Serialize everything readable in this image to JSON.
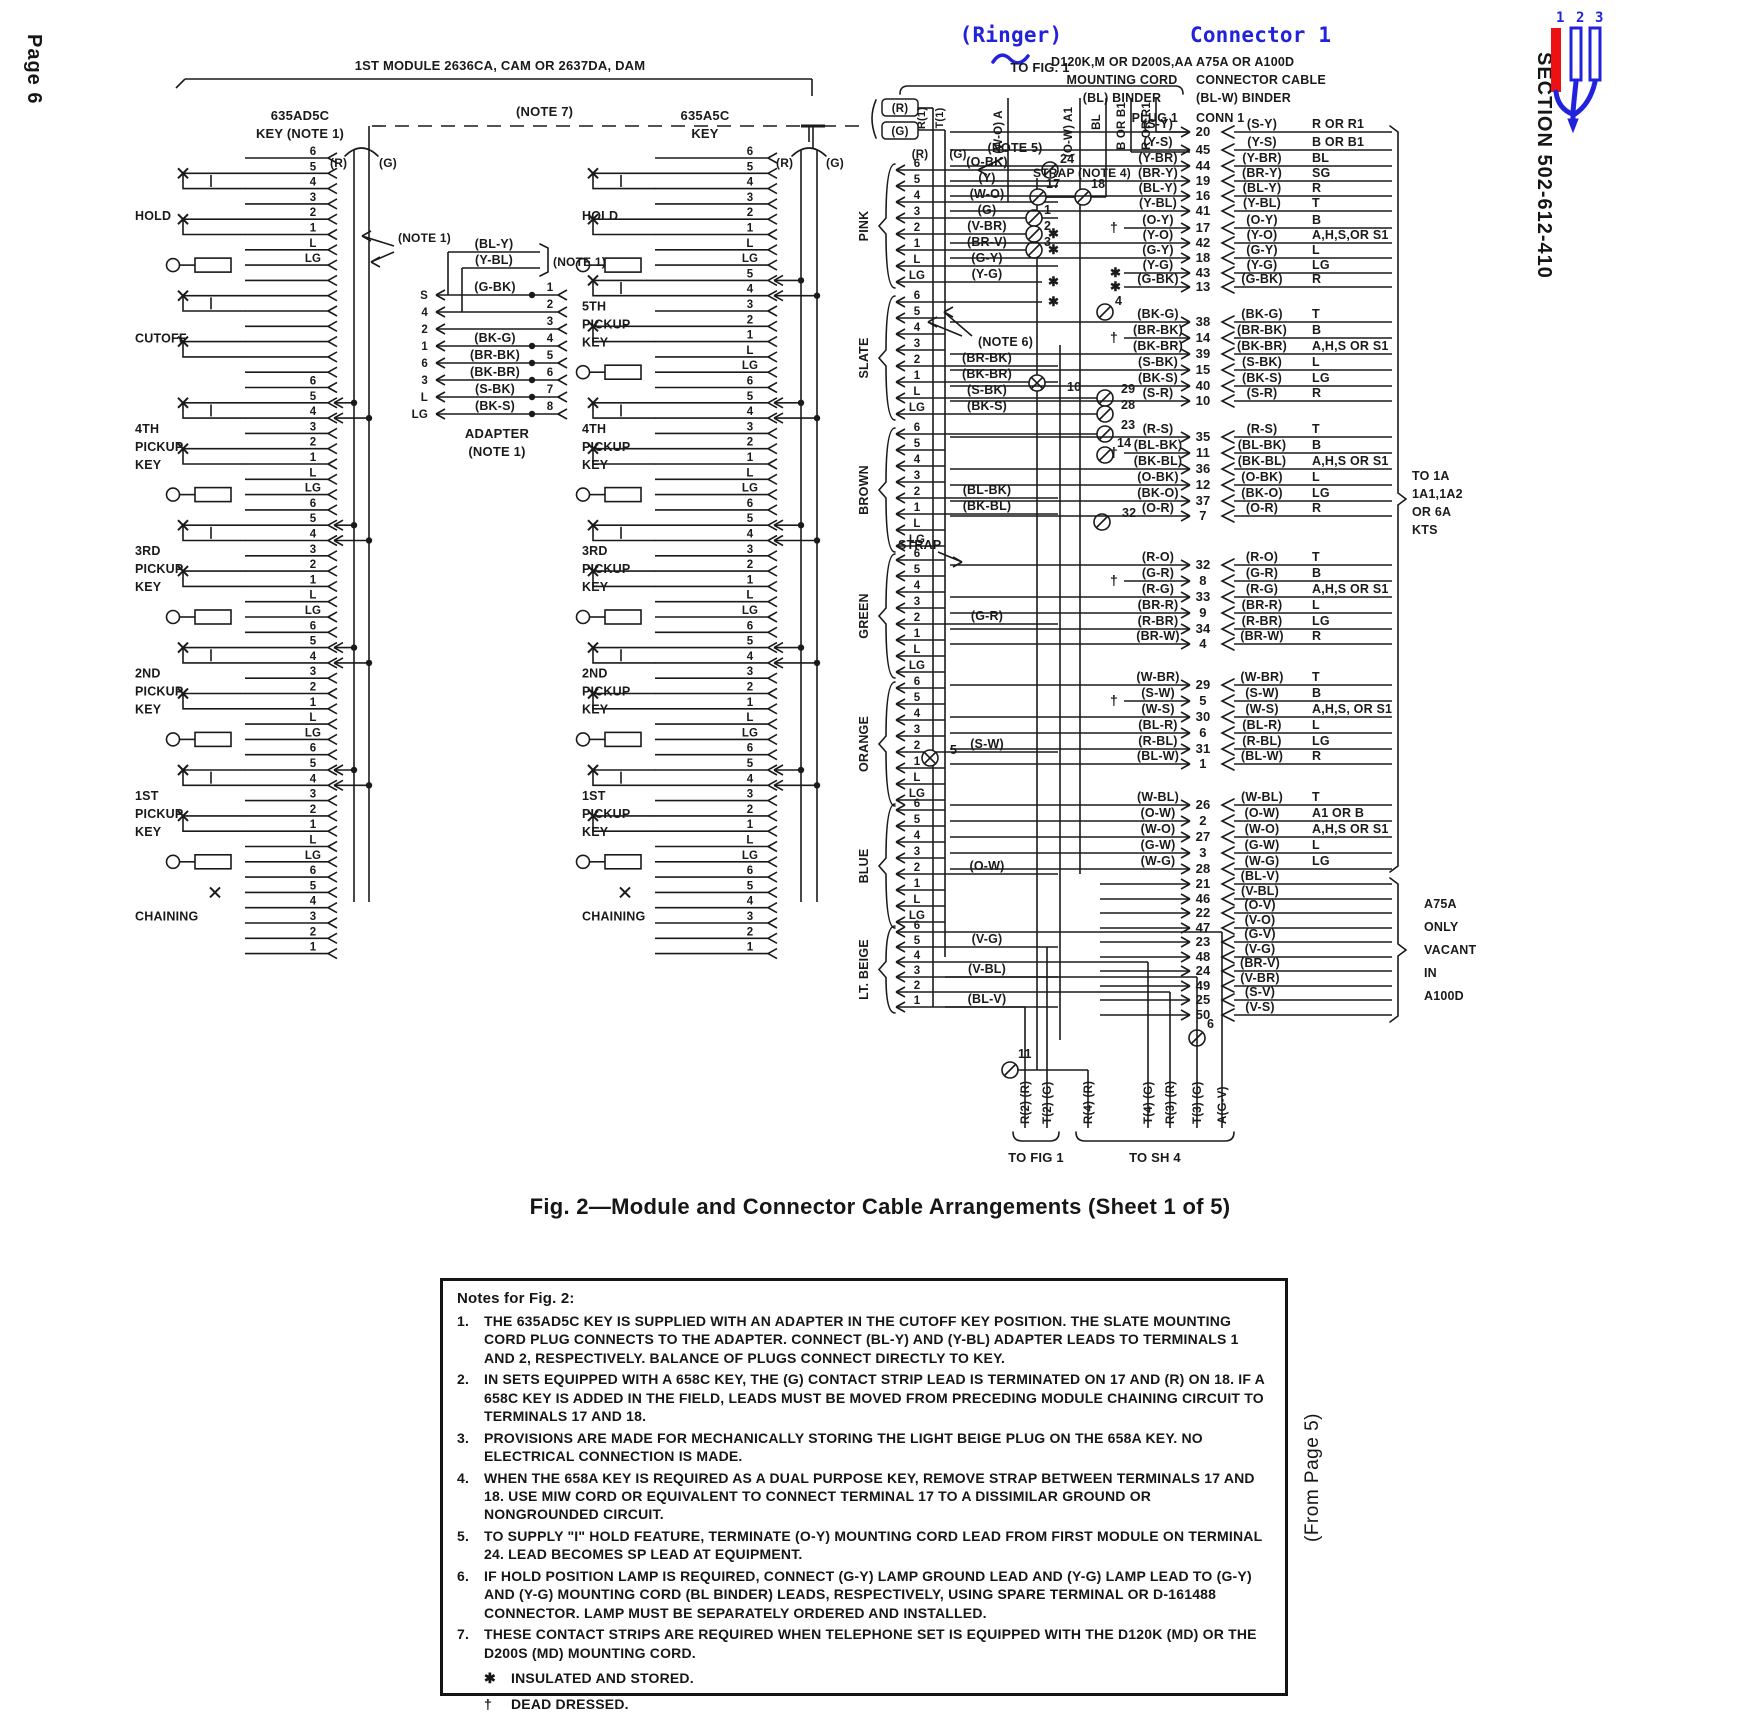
{
  "ink": "#1a1a1a",
  "page": {
    "left_margin_text": "Page 6",
    "right_margin_text": "SECTION 502-612-410",
    "from_page_text": "(From Page 5)",
    "figure_title": "Fig. 2—Module and Connector Cable Arrangements (Sheet 1 of 5)"
  },
  "annotations": {
    "blue": "#2222dd",
    "red": "#ee1111",
    "ringer": "(Ringer)",
    "connector": "Connector 1",
    "pins": [
      "1",
      "2",
      "3"
    ]
  },
  "top": {
    "module": "1ST MODULE 2636CA, CAM OR 2637DA, DAM",
    "note7": "(NOTE 7)",
    "to_fig1": "TO FIG. 1",
    "note5": "(NOTE 5)",
    "note6": "(NOTE 6)",
    "strap": "STRAP",
    "strap_note4": "STRAP (NOTE 4)",
    "rg_boxed": [
      "(R)",
      "(G)"
    ],
    "rg_plain": [
      "(R)",
      "(G)"
    ],
    "verticals_left": [
      "R(1)",
      "T(1)"
    ],
    "verticals_mid": [
      "(W-O) A",
      "(O-W) A1"
    ],
    "verticals_right": [
      "BL",
      "B OR B1",
      "R OR R1"
    ],
    "mounting_cord": [
      "D120K,M OR D200S,AA",
      "MOUNTING CORD",
      "(BL) BINDER"
    ],
    "plug1": "PLUG 1",
    "connector_cable": [
      "A75A OR A100D",
      "CONNECTOR CABLE",
      "(BL-W) BINDER"
    ],
    "conn1": "CONN 1"
  },
  "keys": [
    {
      "title": [
        "635AD5C",
        "KEY (NOTE 1)"
      ],
      "r": "(R)",
      "g": "(G)",
      "sections": [
        {
          "label": [
            "HOLD"
          ],
          "rows": [
            "6",
            "5",
            "4",
            "3",
            "2",
            "1",
            "L",
            "LG"
          ]
        },
        {
          "label": [
            "CUTOFF"
          ],
          "rows": [
            "",
            "",
            "",
            "",
            "",
            "",
            "",
            "6"
          ]
        },
        {
          "label": [
            "4TH",
            "PICKUP",
            "KEY"
          ],
          "rows": [
            "5",
            "4",
            "3",
            "2",
            "1",
            "L",
            "LG",
            "6"
          ]
        },
        {
          "label": [
            "3RD",
            "PICKUP",
            "KEY"
          ],
          "rows": [
            "5",
            "4",
            "3",
            "2",
            "1",
            "L",
            "LG",
            "6"
          ]
        },
        {
          "label": [
            "2ND",
            "PICKUP",
            "KEY"
          ],
          "rows": [
            "5",
            "4",
            "3",
            "2",
            "1",
            "L",
            "LG",
            "6"
          ]
        },
        {
          "label": [
            "1ST",
            "PICKUP",
            "KEY"
          ],
          "rows": [
            "5",
            "4",
            "3",
            "2",
            "1",
            "L",
            "LG",
            "6"
          ]
        },
        {
          "label": [
            "CHAINING"
          ],
          "rows": [
            "5",
            "4",
            "3",
            "2",
            "1"
          ]
        }
      ]
    },
    {
      "title": [
        "635A5C",
        "KEY"
      ],
      "r": "(R)",
      "g": "(G)",
      "sections": [
        {
          "label": [
            "HOLD"
          ],
          "rows": [
            "6",
            "5",
            "4",
            "3",
            "2",
            "1",
            "L",
            "LG"
          ]
        },
        {
          "label": [
            "5TH",
            "PICKUP",
            "KEY"
          ],
          "rows": [
            "5",
            "4",
            "3",
            "2",
            "1",
            "L",
            "LG",
            "6"
          ]
        },
        {
          "label": [
            "4TH",
            "PICKUP",
            "KEY"
          ],
          "rows": [
            "5",
            "4",
            "3",
            "2",
            "1",
            "L",
            "LG",
            "6"
          ]
        },
        {
          "label": [
            "3RD",
            "PICKUP",
            "KEY"
          ],
          "rows": [
            "5",
            "4",
            "3",
            "2",
            "1",
            "L",
            "LG",
            "6"
          ]
        },
        {
          "label": [
            "2ND",
            "PICKUP",
            "KEY"
          ],
          "rows": [
            "5",
            "4",
            "3",
            "2",
            "1",
            "L",
            "LG",
            "6"
          ]
        },
        {
          "label": [
            "1ST",
            "PICKUP",
            "KEY"
          ],
          "rows": [
            "5",
            "4",
            "3",
            "2",
            "1",
            "L",
            "LG",
            "6"
          ]
        },
        {
          "label": [
            "CHAINING"
          ],
          "rows": [
            "5",
            "4",
            "3",
            "2",
            "1"
          ]
        }
      ]
    }
  ],
  "adapter": {
    "top_wires": [
      "(BL-Y)",
      "(Y-BL)"
    ],
    "bracket_note": "(NOTE 1)",
    "key_note": "(NOTE 1)",
    "rows": [
      {
        "l": "S",
        "w": "(G-BK)",
        "r": "1"
      },
      {
        "l": "4",
        "w": "",
        "r": "2"
      },
      {
        "l": "2",
        "w": "",
        "r": "3"
      },
      {
        "l": "1",
        "w": "(BK-G)",
        "r": "4"
      },
      {
        "l": "6",
        "w": "(BR-BK)",
        "r": "5"
      },
      {
        "l": "3",
        "w": "(BK-BR)",
        "r": "6"
      },
      {
        "l": "L",
        "w": "(S-BK)",
        "r": "7"
      },
      {
        "l": "LG",
        "w": "(BK-S)",
        "r": "8"
      }
    ],
    "label": [
      "ADAPTER",
      "(NOTE 1)"
    ]
  },
  "plug_groups": [
    {
      "color": "PINK",
      "rows": [
        {
          "n": "6",
          "w": "(O-BK)"
        },
        {
          "n": "5",
          "w": "(Y)"
        },
        {
          "n": "4",
          "w": "(W-O)"
        },
        {
          "n": "3",
          "w": "(G)"
        },
        {
          "n": "2",
          "w": "(V-BR)",
          "s": true
        },
        {
          "n": "1",
          "w": "(BR-V)",
          "s": true
        },
        {
          "n": "L",
          "w": "(G-Y)"
        },
        {
          "n": "LG",
          "w": "(Y-G)",
          "s": true
        }
      ]
    },
    {
      "color": "SLATE",
      "rows": [
        {
          "n": "6",
          "s": true
        },
        {
          "n": "5"
        },
        {
          "n": "4"
        },
        {
          "n": "3"
        },
        {
          "n": "2",
          "w": "(BR-BK)"
        },
        {
          "n": "1",
          "w": "(BK-BR)"
        },
        {
          "n": "L",
          "w": "(S-BK)"
        },
        {
          "n": "LG",
          "w": "(BK-S)"
        }
      ]
    },
    {
      "color": "BROWN",
      "rows": [
        {
          "n": "6"
        },
        {
          "n": "5"
        },
        {
          "n": "4"
        },
        {
          "n": "3"
        },
        {
          "n": "2",
          "w": "(BL-BK)"
        },
        {
          "n": "1",
          "w": "(BK-BL)"
        },
        {
          "n": "L"
        },
        {
          "n": "LG"
        }
      ]
    },
    {
      "color": "GREEN",
      "rows": [
        {
          "n": "6"
        },
        {
          "n": "5"
        },
        {
          "n": "4"
        },
        {
          "n": "3"
        },
        {
          "n": "2",
          "w": "(G-R)"
        },
        {
          "n": "1"
        },
        {
          "n": "L"
        },
        {
          "n": "LG"
        }
      ]
    },
    {
      "color": "ORANGE",
      "rows": [
        {
          "n": "6"
        },
        {
          "n": "5"
        },
        {
          "n": "4"
        },
        {
          "n": "3"
        },
        {
          "n": "2",
          "w": "(S-W)"
        },
        {
          "n": "1"
        },
        {
          "n": "L"
        },
        {
          "n": "LG"
        }
      ]
    },
    {
      "color": "BLUE",
      "rows": [
        {
          "n": "6"
        },
        {
          "n": "5"
        },
        {
          "n": "4"
        },
        {
          "n": "3"
        },
        {
          "n": "2",
          "w": "(O-W)"
        },
        {
          "n": "1"
        },
        {
          "n": "L"
        },
        {
          "n": "LG"
        }
      ]
    },
    {
      "color": "LT. BEIGE",
      "rows": [
        {
          "n": "6"
        },
        {
          "n": "5",
          "w": "(V-G)"
        },
        {
          "n": "4"
        },
        {
          "n": "3",
          "w": "(V-BL)"
        },
        {
          "n": "2"
        },
        {
          "n": "1",
          "w": "(BL-V)"
        }
      ]
    }
  ],
  "mid_terminals": [
    "24",
    "17",
    "18",
    "1",
    "2",
    "3",
    "4",
    "10",
    "29",
    "28",
    "23",
    "14",
    "32",
    "5",
    "11",
    "6"
  ],
  "right_groups": [
    {
      "rows": [
        {
          "pw": "(S-Y)",
          "t": "20",
          "cw": "(S-Y)",
          "d": "R OR R1"
        },
        {
          "pw": "(Y-S)",
          "t": "45",
          "cw": "(Y-S)",
          "d": "B OR B1"
        },
        {
          "pw": "(Y-BR)",
          "t": "44",
          "cw": "(Y-BR)",
          "d": "BL"
        },
        {
          "pw": "(BR-Y)",
          "t": "19",
          "cw": "(BR-Y)",
          "d": "SG"
        },
        {
          "pw": "(BL-Y)",
          "t": "16",
          "cw": "(BL-Y)",
          "d": "R"
        },
        {
          "pw": "(Y-BL)",
          "t": "41",
          "cw": "(Y-BL)",
          "d": "T"
        },
        {
          "pw": "(O-Y)",
          "t": "17",
          "cw": "(O-Y)",
          "d": "B",
          "dag": true
        },
        {
          "pw": "(Y-O)",
          "t": "42",
          "cw": "(Y-O)",
          "d": "A,H,S,OR S1"
        },
        {
          "pw": "(G-Y)",
          "t": "18",
          "cw": "(G-Y)",
          "d": "L"
        },
        {
          "pw": "(Y-G)",
          "t": "43",
          "cw": "(Y-G)",
          "d": "LG",
          "star": true
        },
        {
          "pw": "(G-BK)",
          "t": "13",
          "cw": "(G-BK)",
          "d": "R",
          "star": true
        }
      ]
    },
    {
      "rows": [
        {
          "pw": "(BK-G)",
          "t": "38",
          "cw": "(BK-G)",
          "d": "T"
        },
        {
          "pw": "(BR-BK)",
          "t": "14",
          "cw": "(BR-BK)",
          "d": "B",
          "dag": true
        },
        {
          "pw": "(BK-BR)",
          "t": "39",
          "cw": "(BK-BR)",
          "d": "A,H,S OR S1"
        },
        {
          "pw": "(S-BK)",
          "t": "15",
          "cw": "(S-BK)",
          "d": "L"
        },
        {
          "pw": "(BK-S)",
          "t": "40",
          "cw": "(BK-S)",
          "d": "LG"
        },
        {
          "pw": "(S-R)",
          "t": "10",
          "cw": "(S-R)",
          "d": "R"
        }
      ]
    },
    {
      "rows": [
        {
          "pw": "(R-S)",
          "t": "35",
          "cw": "(R-S)",
          "d": "T"
        },
        {
          "pw": "(BL-BK)",
          "t": "11",
          "cw": "(BL-BK)",
          "d": "B",
          "dag": true
        },
        {
          "pw": "(BK-BL)",
          "t": "36",
          "cw": "(BK-BL)",
          "d": "A,H,S OR S1"
        },
        {
          "pw": "(O-BK)",
          "t": "12",
          "cw": "(O-BK)",
          "d": "L"
        },
        {
          "pw": "(BK-O)",
          "t": "37",
          "cw": "(BK-O)",
          "d": "LG"
        },
        {
          "pw": "(O-R)",
          "t": "7",
          "cw": "(O-R)",
          "d": "R"
        }
      ]
    },
    {
      "rows": [
        {
          "pw": "(R-O)",
          "t": "32",
          "cw": "(R-O)",
          "d": "T"
        },
        {
          "pw": "(G-R)",
          "t": "8",
          "cw": "(G-R)",
          "d": "B",
          "dag": true
        },
        {
          "pw": "(R-G)",
          "t": "33",
          "cw": "(R-G)",
          "d": "A,H,S OR S1"
        },
        {
          "pw": "(BR-R)",
          "t": "9",
          "cw": "(BR-R)",
          "d": "L"
        },
        {
          "pw": "(R-BR)",
          "t": "34",
          "cw": "(R-BR)",
          "d": "LG"
        },
        {
          "pw": "(BR-W)",
          "t": "4",
          "cw": "(BR-W)",
          "d": "R"
        }
      ]
    },
    {
      "rows": [
        {
          "pw": "(W-BR)",
          "t": "29",
          "cw": "(W-BR)",
          "d": "T"
        },
        {
          "pw": "(S-W)",
          "t": "5",
          "cw": "(S-W)",
          "d": "B",
          "dag": true
        },
        {
          "pw": "(W-S)",
          "t": "30",
          "cw": "(W-S)",
          "d": "A,H,S, OR S1"
        },
        {
          "pw": "(BL-R)",
          "t": "6",
          "cw": "(BL-R)",
          "d": "L"
        },
        {
          "pw": "(R-BL)",
          "t": "31",
          "cw": "(R-BL)",
          "d": "LG"
        },
        {
          "pw": "(BL-W)",
          "t": "1",
          "cw": "(BL-W)",
          "d": "R"
        }
      ]
    },
    {
      "rows": [
        {
          "pw": "(W-BL)",
          "t": "26",
          "cw": "(W-BL)",
          "d": "T"
        },
        {
          "pw": "(O-W)",
          "t": "2",
          "cw": "(O-W)",
          "d": "A1 OR B"
        },
        {
          "pw": "(W-O)",
          "t": "27",
          "cw": "(W-O)",
          "d": "A,H,S OR S1"
        },
        {
          "pw": "(G-W)",
          "t": "3",
          "cw": "(G-W)",
          "d": "L"
        },
        {
          "pw": "(W-G)",
          "t": "28",
          "cw": "(W-G)",
          "d": "LG"
        }
      ]
    }
  ],
  "vacant_rows": [
    {
      "t": "21",
      "w": "(BL-V)"
    },
    {
      "t": "46",
      "w": "(V-BL)"
    },
    {
      "t": "22",
      "w": "(O-V)"
    },
    {
      "t": "47",
      "w": "(V-O)"
    },
    {
      "t": "23",
      "w": "(G-V)"
    },
    {
      "t": "48",
      "w": "(V-G)"
    },
    {
      "t": "24",
      "w": "(BR-V)"
    },
    {
      "t": "49",
      "w": "(V-BR)"
    },
    {
      "t": "25",
      "w": "(S-V)"
    },
    {
      "t": "50",
      "w": "(V-S)"
    }
  ],
  "side_notes": {
    "to_1a": [
      "TO 1A",
      "1A1,1A2",
      "OR 6A",
      "KTS"
    ],
    "a75a": [
      "A75A",
      "ONLY",
      "VACANT",
      "IN",
      "A100D"
    ]
  },
  "bottom": {
    "to_fig1_label": "TO FIG 1",
    "to_sh4_label": "TO SH 4",
    "fig1_leads": [
      "R(2) (R)",
      "T(2) (G)"
    ],
    "sh4_leads": [
      "R(4) (R)",
      "T(4) (G)",
      "R(3) (R)",
      "T(3) (G)",
      "A(G-V)"
    ]
  },
  "notes": {
    "heading": "Notes for Fig. 2:",
    "items": [
      "THE 635AD5C KEY IS SUPPLIED WITH AN ADAPTER IN THE CUTOFF KEY POSITION. THE SLATE MOUNTING CORD PLUG CONNECTS TO THE ADAPTER. CONNECT (BL-Y) AND (Y-BL) ADAPTER LEADS TO TERMINALS 1 AND 2, RESPECTIVELY. BALANCE OF PLUGS CONNECT DIRECTLY TO KEY.",
      "IN SETS EQUIPPED WITH A 658C KEY, THE (G) CONTACT STRIP LEAD IS TERMINATED ON 17 AND (R) ON 18. IF A 658C KEY IS ADDED IN THE FIELD, LEADS MUST BE MOVED FROM PRECEDING MODULE CHAINING CIRCUIT TO TERMINALS 17 AND 18.",
      "PROVISIONS ARE MADE FOR MECHANICALLY STORING THE LIGHT BEIGE PLUG ON THE 658A KEY. NO ELECTRICAL CONNECTION IS MADE.",
      "WHEN THE 658A KEY IS REQUIRED AS A DUAL PURPOSE KEY, REMOVE STRAP BETWEEN TERMINALS 17 AND 18. USE MIW CORD OR EQUIVALENT TO CONNECT TERMINAL 17 TO A DISSIMILAR GROUND OR NONGROUNDED CIRCUIT.",
      "TO SUPPLY \"I\" HOLD FEATURE, TERMINATE (O-Y) MOUNTING CORD LEAD FROM FIRST MODULE ON TERMINAL 24. LEAD BECOMES SP LEAD AT EQUIPMENT.",
      "IF HOLD POSITION LAMP IS REQUIRED, CONNECT (G-Y) LAMP GROUND LEAD AND (Y-G) LAMP LEAD TO (G-Y) AND (Y-G) MOUNTING CORD (BL BINDER) LEADS, RESPECTIVELY, USING SPARE TERMINAL OR D-161488 CONNECTOR. LAMP MUST BE SEPARATELY ORDERED AND INSTALLED.",
      "THESE CONTACT STRIPS ARE REQUIRED WHEN TELEPHONE SET IS EQUIPPED WITH THE D120K (MD) OR THE D200S (MD) MOUNTING CORD."
    ],
    "footnotes": [
      {
        "sym": "✱",
        "text": "INSULATED AND STORED."
      },
      {
        "sym": "†",
        "text": "DEAD DRESSED."
      }
    ]
  }
}
